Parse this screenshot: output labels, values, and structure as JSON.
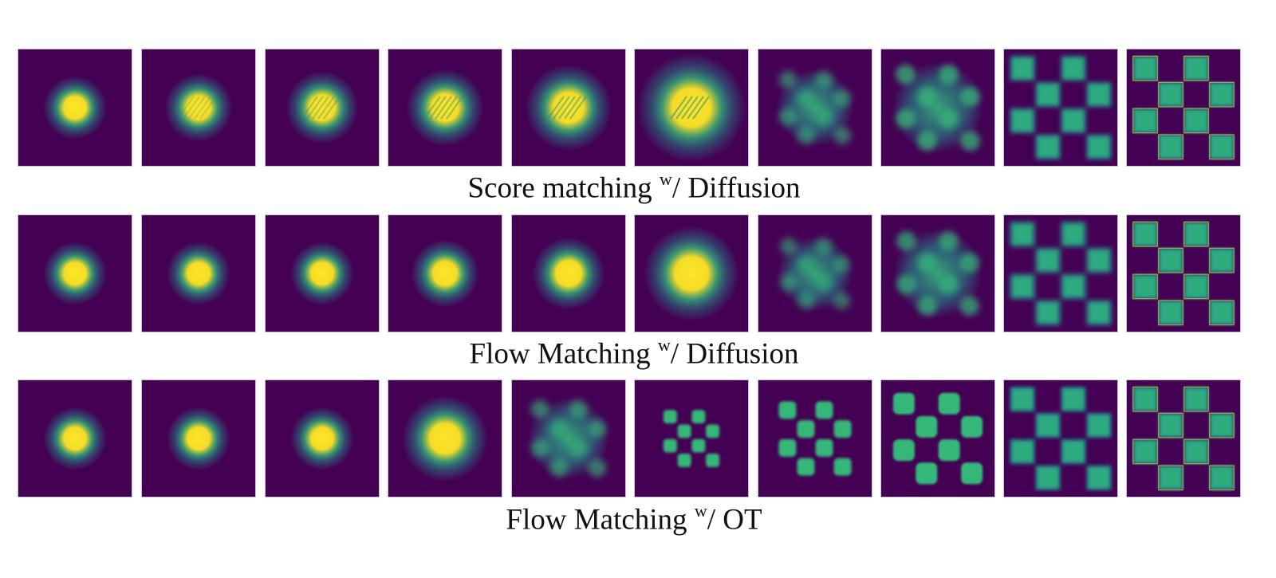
{
  "figure": {
    "rows": [
      {
        "caption_prefix": "Score matching",
        "caption_sup": "w",
        "caption_suffix": "/ Diffusion",
        "panels": [
          {
            "kind": "blob",
            "spread": 0.14,
            "stripes": 0
          },
          {
            "kind": "blob",
            "spread": 0.15,
            "stripes": 0.3
          },
          {
            "kind": "blob",
            "spread": 0.16,
            "stripes": 0.45
          },
          {
            "kind": "blob",
            "spread": 0.17,
            "stripes": 0.55
          },
          {
            "kind": "blob",
            "spread": 0.19,
            "stripes": 0.6
          },
          {
            "kind": "blob",
            "spread": 0.24,
            "stripes": 0.7
          },
          {
            "kind": "transition",
            "stage": 0.25
          },
          {
            "kind": "transition",
            "stage": 0.6
          },
          {
            "kind": "checker",
            "blur": 0.35
          },
          {
            "kind": "checker",
            "blur": 0.1
          }
        ]
      },
      {
        "caption_prefix": "Flow Matching",
        "caption_sup": "w",
        "caption_suffix": "/ Diffusion",
        "panels": [
          {
            "kind": "blob",
            "spread": 0.14,
            "stripes": 0
          },
          {
            "kind": "blob",
            "spread": 0.14,
            "stripes": 0
          },
          {
            "kind": "blob",
            "spread": 0.14,
            "stripes": 0
          },
          {
            "kind": "blob",
            "spread": 0.15,
            "stripes": 0
          },
          {
            "kind": "blob",
            "spread": 0.16,
            "stripes": 0
          },
          {
            "kind": "blob",
            "spread": 0.21,
            "stripes": 0
          },
          {
            "kind": "transition",
            "stage": 0.2
          },
          {
            "kind": "transition",
            "stage": 0.55
          },
          {
            "kind": "checker",
            "blur": 0.4
          },
          {
            "kind": "checker",
            "blur": 0.1
          }
        ]
      },
      {
        "caption_prefix": "Flow Matching",
        "caption_sup": "w",
        "caption_suffix": "/ OT",
        "panels": [
          {
            "kind": "blob",
            "spread": 0.14,
            "stripes": 0
          },
          {
            "kind": "blob",
            "spread": 0.14,
            "stripes": 0
          },
          {
            "kind": "blob",
            "spread": 0.14,
            "stripes": 0
          },
          {
            "kind": "blob",
            "spread": 0.19,
            "stripes": 0
          },
          {
            "kind": "transition",
            "stage": 0.35
          },
          {
            "kind": "scaled-checker",
            "scale": 0.5
          },
          {
            "kind": "scaled-checker",
            "scale": 0.65
          },
          {
            "kind": "scaled-checker",
            "scale": 0.8
          },
          {
            "kind": "checker",
            "blur": 0.25
          },
          {
            "kind": "checker",
            "blur": 0.12
          }
        ]
      }
    ],
    "colors": {
      "background": "#440154",
      "mid": "#21918c",
      "high": "#35b779",
      "peak": "#fde725"
    }
  }
}
